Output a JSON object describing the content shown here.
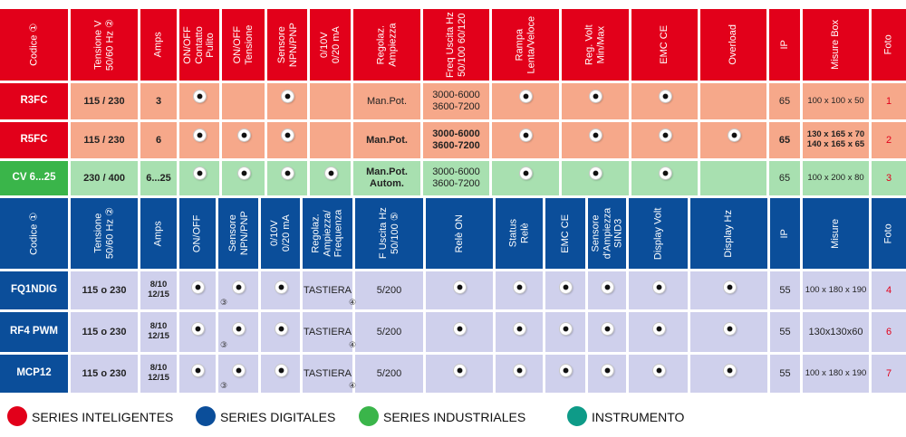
{
  "colors": {
    "red": "#e2001a",
    "orange": "#f6a88a",
    "green_row": "#a8e0b0",
    "green": "#3ab54a",
    "blue": "#0b4e9a",
    "lavender": "#cfd0ec",
    "teal": "#0e9b88",
    "white": "#ffffff"
  },
  "table1": {
    "headers": [
      "Codice ①",
      "Tensione V 50/60 Hz ②",
      "Amps",
      "ON/OFF Contatto Pulito",
      "ON/OFF Tensione",
      "Sensore NPN/PNP",
      "0/10V 0/20 mA",
      "Regolaz. Ampiezza",
      "Freq Uscita Hz 50/100 60/120",
      "Rampa Lenta/Veloce",
      "Reg. Volt Min/Max",
      "EMC CE",
      "Overload",
      "IP",
      "Misure Box",
      "Foto"
    ],
    "rows": [
      {
        "code": "R3FC",
        "voltage": "115 / 230",
        "amps": "3",
        "regolaz": "Man.Pot.",
        "freq": "3000-6000\n3600-7200",
        "ip": "65",
        "misure": "100 x 100 x 50",
        "foto": "1"
      },
      {
        "code": "R5FC",
        "voltage": "115 / 230",
        "amps": "6",
        "regolaz": "Man.Pot.",
        "freq": "3000-6000\n3600-7200",
        "ip": "65",
        "misure": "130 x 165 x 70\n140 x 165 x 65",
        "foto": "2"
      },
      {
        "code": "CV 6...25",
        "voltage": "230 / 400",
        "amps": "6...25",
        "regolaz": "Man.Pot.\nAutom.",
        "freq": "3000-6000\n3600-7200",
        "ip": "65",
        "misure": "100 x 200 x 80",
        "foto": "3"
      }
    ]
  },
  "table2": {
    "headers": [
      "Codice ①",
      "Tensione 50/60 Hz ②",
      "Amps",
      "ON/OFF",
      "Sensore NPN/PNP",
      "0/10V 0/20 mA",
      "Regolaz. Ampiezza/ Frequenza",
      "F Uscita Hz 50/100 ⑤",
      "Relè ON",
      "Status Relè",
      "EMC CE",
      "Sensore d'Ampiezza SIND3",
      "Display Volt",
      "Display Hz",
      "IP",
      "Misure",
      "Foto"
    ],
    "rows": [
      {
        "code": "FQ1NDIG",
        "voltage": "115 o 230",
        "amps": "8/10\n12/15",
        "regolaz": "TASTIERA",
        "fuscita": "5/200",
        "ip": "55",
        "misure": "100 x 180 x 190",
        "foto": "4"
      },
      {
        "code": "RF4 PWM",
        "voltage": "115 o 230",
        "amps": "8/10\n12/15",
        "regolaz": "TASTIERA",
        "fuscita": "5/200",
        "ip": "55",
        "misure": "130x130x60",
        "foto": "6"
      },
      {
        "code": "MCP12",
        "voltage": "115 o 230",
        "amps": "8/10\n12/15",
        "regolaz": "TASTIERA",
        "fuscita": "5/200",
        "ip": "55",
        "misure": "100 x 180 x 190",
        "foto": "7"
      }
    ],
    "note3": "③",
    "note4": "④"
  },
  "legend": [
    {
      "label": "SERIES INTELIGENTES",
      "color": "#e2001a"
    },
    {
      "label": "SERIES DIGITALES",
      "color": "#0b4e9a"
    },
    {
      "label": "SERIES INDUSTRIALES",
      "color": "#3ab54a"
    },
    {
      "label": "INSTRUMENTO",
      "color": "#0e9b88"
    }
  ]
}
